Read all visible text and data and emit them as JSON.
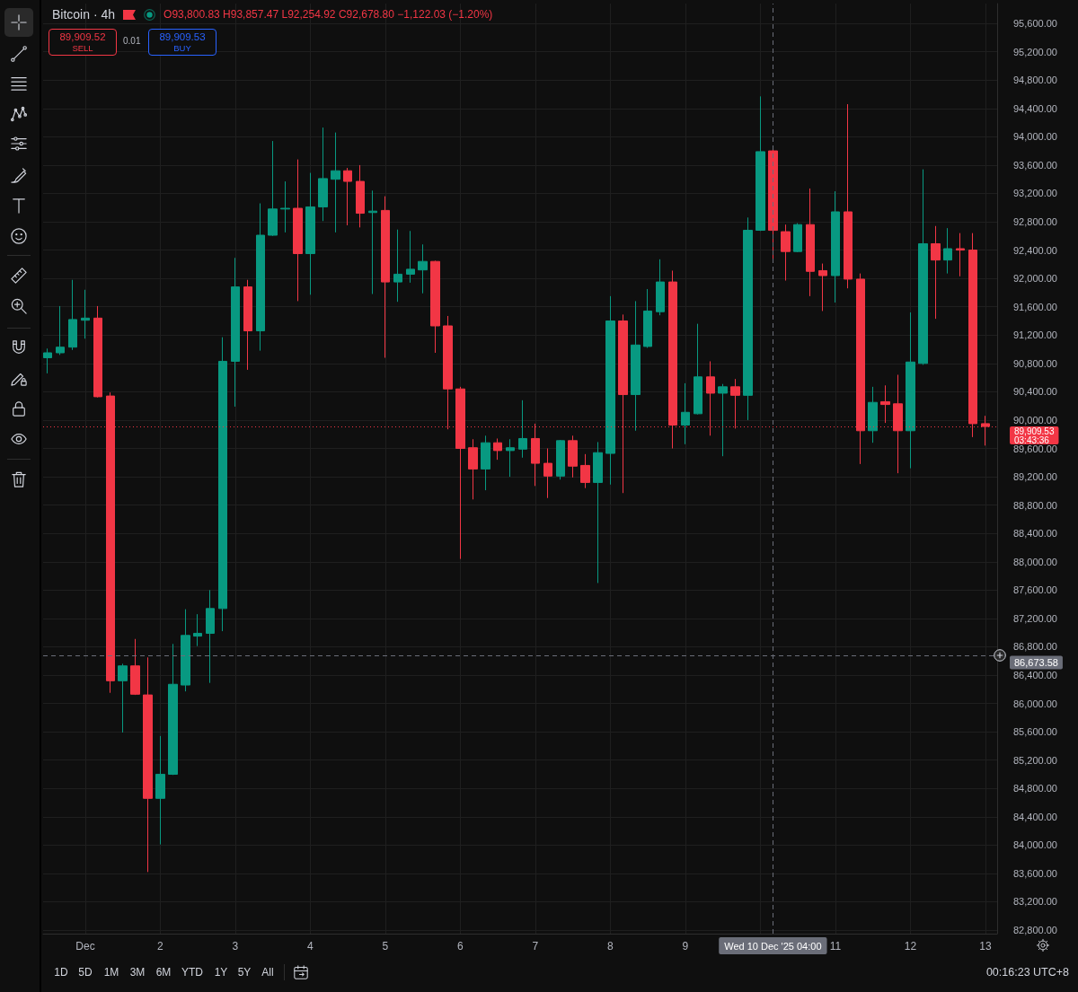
{
  "chart_data": {
    "type": "candlestick",
    "title": "Bitcoin · 4h",
    "x": [
      "2025-11-30T12:00",
      "2025-11-30T16:00",
      "2025-11-30T20:00",
      "2025-12-01T00:00",
      "2025-12-01T04:00",
      "2025-12-01T08:00",
      "2025-12-01T12:00",
      "2025-12-01T16:00",
      "2025-12-01T20:00",
      "2025-12-02T00:00",
      "2025-12-02T04:00",
      "2025-12-02T08:00",
      "2025-12-02T12:00",
      "2025-12-02T16:00",
      "2025-12-02T20:00",
      "2025-12-03T00:00",
      "2025-12-03T04:00",
      "2025-12-03T08:00",
      "2025-12-03T12:00",
      "2025-12-03T16:00",
      "2025-12-03T20:00",
      "2025-12-04T00:00",
      "2025-12-04T04:00",
      "2025-12-04T08:00",
      "2025-12-04T12:00",
      "2025-12-04T16:00",
      "2025-12-04T20:00",
      "2025-12-05T00:00",
      "2025-12-05T04:00",
      "2025-12-05T08:00",
      "2025-12-05T12:00",
      "2025-12-05T16:00",
      "2025-12-05T20:00",
      "2025-12-06T00:00",
      "2025-12-06T04:00",
      "2025-12-06T08:00",
      "2025-12-06T12:00",
      "2025-12-06T16:00",
      "2025-12-06T20:00",
      "2025-12-07T00:00",
      "2025-12-07T04:00",
      "2025-12-07T08:00",
      "2025-12-07T12:00",
      "2025-12-07T16:00",
      "2025-12-07T20:00",
      "2025-12-08T00:00",
      "2025-12-08T04:00",
      "2025-12-08T08:00",
      "2025-12-08T12:00",
      "2025-12-08T16:00",
      "2025-12-08T20:00",
      "2025-12-09T00:00",
      "2025-12-09T04:00",
      "2025-12-09T08:00",
      "2025-12-09T12:00",
      "2025-12-09T16:00",
      "2025-12-09T20:00",
      "2025-12-10T00:00",
      "2025-12-10T04:00",
      "2025-12-10T08:00",
      "2025-12-10T12:00",
      "2025-12-10T16:00",
      "2025-12-10T20:00",
      "2025-12-11T00:00",
      "2025-12-11T04:00",
      "2025-12-11T08:00",
      "2025-12-11T12:00",
      "2025-12-11T16:00",
      "2025-12-11T20:00",
      "2025-12-12T00:00",
      "2025-12-12T04:00",
      "2025-12-12T08:00",
      "2025-12-12T12:00",
      "2025-12-12T16:00",
      "2025-12-12T20:00",
      "2025-12-13T00:00"
    ],
    "ohlc": [
      [
        90880,
        91010,
        90660,
        90950
      ],
      [
        90950,
        91610,
        90920,
        91030
      ],
      [
        91030,
        91980,
        90990,
        91420
      ],
      [
        91410,
        91840,
        91150,
        91440
      ],
      [
        91440,
        91610,
        90320,
        90330
      ],
      [
        90340,
        90390,
        86150,
        86320
      ],
      [
        86320,
        86560,
        85590,
        86530
      ],
      [
        86530,
        86910,
        86120,
        86130
      ],
      [
        86120,
        86650,
        83620,
        84660
      ],
      [
        84660,
        85540,
        84010,
        85000
      ],
      [
        85000,
        86840,
        84990,
        86270
      ],
      [
        86260,
        87330,
        86170,
        86960
      ],
      [
        86950,
        87260,
        86810,
        86990
      ],
      [
        86990,
        87600,
        86290,
        87340
      ],
      [
        87340,
        91170,
        87020,
        90830
      ],
      [
        90830,
        92290,
        90190,
        91880
      ],
      [
        91880,
        91980,
        90710,
        91260
      ],
      [
        91260,
        93060,
        90980,
        92610
      ],
      [
        92610,
        93940,
        92600,
        92980
      ],
      [
        92980,
        93370,
        92650,
        92990
      ],
      [
        92990,
        93680,
        91680,
        92350
      ],
      [
        92350,
        93490,
        91770,
        93010
      ],
      [
        93010,
        94130,
        92810,
        93410
      ],
      [
        93400,
        94060,
        92650,
        93520
      ],
      [
        93520,
        93560,
        92750,
        93370
      ],
      [
        93370,
        93600,
        92720,
        92920
      ],
      [
        92930,
        93240,
        91780,
        92950
      ],
      [
        92960,
        93160,
        90880,
        91950
      ],
      [
        91950,
        92690,
        91670,
        92060
      ],
      [
        92060,
        92670,
        91940,
        92130
      ],
      [
        92120,
        92480,
        91790,
        92240
      ],
      [
        92240,
        92250,
        90950,
        91330
      ],
      [
        91330,
        91470,
        89870,
        90440
      ],
      [
        90440,
        90470,
        88040,
        89600
      ],
      [
        89610,
        89730,
        88880,
        89310
      ],
      [
        89310,
        89780,
        89010,
        89680
      ],
      [
        89680,
        89740,
        89440,
        89570
      ],
      [
        89570,
        89730,
        89200,
        89610
      ],
      [
        89590,
        90280,
        89470,
        89740
      ],
      [
        89740,
        89950,
        89070,
        89390
      ],
      [
        89390,
        89600,
        88900,
        89210
      ],
      [
        89210,
        89720,
        89160,
        89710
      ],
      [
        89710,
        89780,
        89190,
        89350
      ],
      [
        89360,
        89520,
        89040,
        89120
      ],
      [
        89120,
        89690,
        87700,
        89540
      ],
      [
        89530,
        91750,
        89090,
        91400
      ],
      [
        91400,
        91490,
        88970,
        90360
      ],
      [
        90360,
        91680,
        89850,
        91060
      ],
      [
        91040,
        91850,
        91020,
        91540
      ],
      [
        91530,
        92270,
        91480,
        91950
      ],
      [
        91950,
        92110,
        89600,
        89930
      ],
      [
        89930,
        90520,
        89660,
        90110
      ],
      [
        90090,
        91360,
        90080,
        90610
      ],
      [
        90610,
        90830,
        89780,
        90380
      ],
      [
        90380,
        90510,
        89490,
        90470
      ],
      [
        90470,
        90580,
        89880,
        90350
      ],
      [
        90350,
        92860,
        90000,
        92680
      ],
      [
        92680,
        94570,
        92670,
        93790
      ],
      [
        93800.83,
        93857.47,
        92254.92,
        92678.8
      ],
      [
        92660,
        92760,
        91970,
        92380
      ],
      [
        92380,
        92780,
        92370,
        92760
      ],
      [
        92760,
        93270,
        91750,
        92100
      ],
      [
        92110,
        92210,
        91540,
        92040
      ],
      [
        92040,
        93230,
        91660,
        92940
      ],
      [
        92940,
        94460,
        91860,
        91990
      ],
      [
        91990,
        92070,
        89380,
        89850
      ],
      [
        89850,
        90470,
        89680,
        90250
      ],
      [
        90260,
        90490,
        89960,
        90220
      ],
      [
        90230,
        90640,
        89250,
        89850
      ],
      [
        89850,
        91520,
        89320,
        90820
      ],
      [
        90800,
        93540,
        90780,
        92490
      ],
      [
        92490,
        92740,
        91430,
        92260
      ],
      [
        92260,
        92710,
        92070,
        92420
      ],
      [
        92420,
        92640,
        92030,
        92400
      ],
      [
        92400,
        92640,
        89760,
        89950
      ],
      [
        89950,
        90060,
        89640,
        89909.53
      ]
    ],
    "colors": [
      "#089981",
      "#089981",
      "#089981",
      "#089981",
      "#f23645",
      "#f23645",
      "#089981",
      "#f23645",
      "#f23645",
      "#089981",
      "#089981",
      "#089981",
      "#089981",
      "#089981",
      "#089981",
      "#089981",
      "#f23645",
      "#089981",
      "#089981",
      "#089981",
      "#f23645",
      "#089981",
      "#089981",
      "#089981",
      "#f23645",
      "#f23645",
      "#089981",
      "#f23645",
      "#089981",
      "#089981",
      "#089981",
      "#f23645",
      "#f23645",
      "#f23645",
      "#f23645",
      "#089981",
      "#f23645",
      "#089981",
      "#089981",
      "#f23645",
      "#f23645",
      "#089981",
      "#f23645",
      "#f23645",
      "#089981",
      "#089981",
      "#f23645",
      "#089981",
      "#089981",
      "#089981",
      "#f23645",
      "#089981",
      "#089981",
      "#f23645",
      "#089981",
      "#f23645",
      "#089981",
      "#089981",
      "#f23645",
      "#f23645",
      "#089981",
      "#f23645",
      "#f23645",
      "#089981",
      "#f23645",
      "#f23645",
      "#089981",
      "#f23645",
      "#f23645",
      "#089981",
      "#089981",
      "#f23645",
      "#089981",
      "#f23645",
      "#f23645",
      "#f23645"
    ],
    "xlim": [
      "2025-11-30T10:30",
      "2025-12-13T03:45"
    ],
    "xticks": [
      {
        "value": "2025-12-01T00:00",
        "label": "Dec"
      },
      {
        "value": "2025-12-02T00:00",
        "label": "2"
      },
      {
        "value": "2025-12-03T00:00",
        "label": "3"
      },
      {
        "value": "2025-12-04T00:00",
        "label": "4"
      },
      {
        "value": "2025-12-05T00:00",
        "label": "5"
      },
      {
        "value": "2025-12-06T00:00",
        "label": "6"
      },
      {
        "value": "2025-12-07T00:00",
        "label": "7"
      },
      {
        "value": "2025-12-08T00:00",
        "label": "8"
      },
      {
        "value": "2025-12-09T00:00",
        "label": "9"
      },
      {
        "value": "2025-12-10T00:00",
        "label": null
      },
      {
        "value": "2025-12-11T00:00",
        "label": "11"
      },
      {
        "value": "2025-12-12T00:00",
        "label": "12"
      },
      {
        "value": "2025-12-13T00:00",
        "label": "13"
      }
    ],
    "ylim": [
      82750,
      95880
    ],
    "yticks": [
      {
        "value": 82800,
        "label": "82,800.00"
      },
      {
        "value": 83200,
        "label": "83,200.00"
      },
      {
        "value": 83600,
        "label": "83,600.00"
      },
      {
        "value": 84000,
        "label": "84,000.00"
      },
      {
        "value": 84400,
        "label": "84,400.00"
      },
      {
        "value": 84800,
        "label": "84,800.00"
      },
      {
        "value": 85200,
        "label": "85,200.00"
      },
      {
        "value": 85600,
        "label": "85,600.00"
      },
      {
        "value": 86000,
        "label": "86,000.00"
      },
      {
        "value": 86400,
        "label": "86,400.00"
      },
      {
        "value": 86800,
        "label": "86,800.00"
      },
      {
        "value": 87200,
        "label": "87,200.00"
      },
      {
        "value": 87600,
        "label": "87,600.00"
      },
      {
        "value": 88000,
        "label": "88,000.00"
      },
      {
        "value": 88400,
        "label": "88,400.00"
      },
      {
        "value": 88800,
        "label": "88,800.00"
      },
      {
        "value": 89200,
        "label": "89,200.00"
      },
      {
        "value": 89600,
        "label": "89,600.00"
      },
      {
        "value": 90000,
        "label": "90,000.00"
      },
      {
        "value": 90400,
        "label": "90,400.00"
      },
      {
        "value": 90800,
        "label": "90,800.00"
      },
      {
        "value": 91200,
        "label": "91,200.00"
      },
      {
        "value": 91600,
        "label": "91,600.00"
      },
      {
        "value": 92000,
        "label": "92,000.00"
      },
      {
        "value": 92400,
        "label": "92,400.00"
      },
      {
        "value": 92800,
        "label": "92,800.00"
      },
      {
        "value": 93200,
        "label": "93,200.00"
      },
      {
        "value": 93600,
        "label": "93,600.00"
      },
      {
        "value": 94000,
        "label": "94,000.00"
      },
      {
        "value": 94400,
        "label": "94,400.00"
      },
      {
        "value": 94800,
        "label": "94,800.00"
      },
      {
        "value": 95200,
        "label": "95,200.00"
      },
      {
        "value": 95600,
        "label": "95,600.00"
      }
    ],
    "grid": true,
    "ref_lines": [
      {
        "axis": "y",
        "value": 89909.53,
        "label": "89,909.53\n03:43:36",
        "color": "#f23645",
        "line_style": "dotted"
      },
      {
        "axis": "y",
        "value": 86673.58,
        "label": "86,673.58",
        "color": "#6a6d78",
        "line_style": "dashed"
      },
      {
        "axis": "x",
        "value": "2025-12-10T04:00",
        "label": "Wed 10 Dec '25 04:00",
        "color": "#6a6d78",
        "line_style": "dashed"
      }
    ],
    "annotations": [
      "O93,800.83 H93,857.47 L92,254.92 C92,678.80 −1,122.03 (−1.20%)",
      "89,909.52",
      "SELL",
      "0.01",
      "89,909.53",
      "BUY",
      "1D",
      "5D",
      "1M",
      "3M",
      "6M",
      "YTD",
      "1Y",
      "5Y",
      "All",
      "00:16:23 UTC+8"
    ]
  }
}
